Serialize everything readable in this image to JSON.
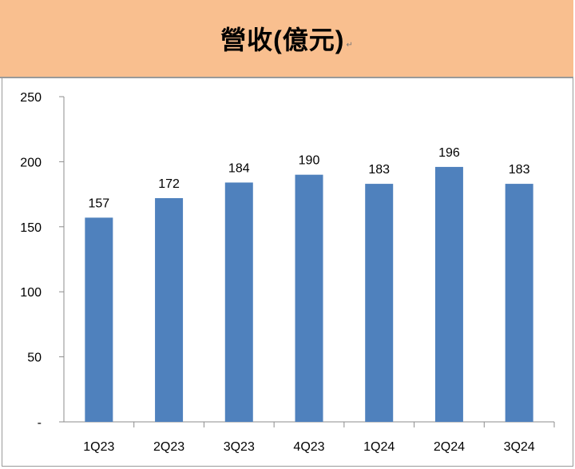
{
  "header": {
    "title": "營收(億元)",
    "mark": "↵"
  },
  "chart_data": {
    "type": "bar",
    "title": "營收(億元)",
    "categories": [
      "1Q23",
      "2Q23",
      "3Q23",
      "4Q23",
      "1Q24",
      "2Q24",
      "3Q24"
    ],
    "values": [
      157,
      172,
      184,
      190,
      183,
      196,
      183
    ],
    "ylim": [
      0,
      250
    ],
    "yticks": [
      "-",
      "50",
      "100",
      "150",
      "200",
      "250"
    ],
    "bar_color": "#4f81bd",
    "grid": false,
    "legend": "none"
  }
}
